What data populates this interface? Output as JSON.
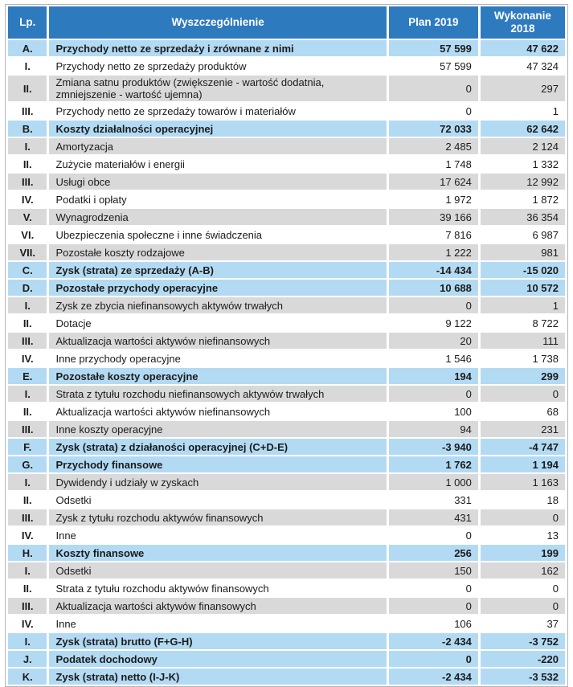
{
  "colors": {
    "header_bg": "#2e7abf",
    "header_text": "#ffffff",
    "section_row_bg": "#b3daf3",
    "gray_row_bg": "#d9d9d9",
    "body_text": "#1b1b1b"
  },
  "table": {
    "columns": [
      "Lp.",
      "Wyszczególnienie",
      "Plan 2019",
      "Wykonanie 2018"
    ],
    "rows": [
      {
        "lp": "A.",
        "name": "Przychody netto ze sprzedaży i zrównane z nimi",
        "plan": "57 599",
        "wykonanie": "47 622",
        "style": "section"
      },
      {
        "lp": "I.",
        "name": "Przychody netto ze sprzedaży produktów",
        "plan": "57 599",
        "wykonanie": "47 324",
        "style": "white"
      },
      {
        "lp": "II.",
        "name": "Zmiana satnu produktów (zwiększenie - wartość dodatnia, zmniejszenie - wartość ujemna)",
        "plan": "0",
        "wykonanie": "297",
        "style": "gray"
      },
      {
        "lp": "III.",
        "name": "Przychody netto ze sprzedaży towarów i materiałów",
        "plan": "0",
        "wykonanie": "1",
        "style": "white"
      },
      {
        "lp": "B.",
        "name": "Koszty działalności operacyjnej",
        "plan": "72 033",
        "wykonanie": "62 642",
        "style": "section"
      },
      {
        "lp": "I.",
        "name": "Amortyzacja",
        "plan": "2 485",
        "wykonanie": "2 124",
        "style": "gray"
      },
      {
        "lp": "II.",
        "name": "Zużycie materiałów i energii",
        "plan": "1 748",
        "wykonanie": "1 332",
        "style": "white"
      },
      {
        "lp": "III.",
        "name": "Usługi obce",
        "plan": "17 624",
        "wykonanie": "12 992",
        "style": "gray"
      },
      {
        "lp": "IV.",
        "name": "Podatki i opłaty",
        "plan": "1 972",
        "wykonanie": "1 872",
        "style": "white"
      },
      {
        "lp": "V.",
        "name": "Wynagrodzenia",
        "plan": "39 166",
        "wykonanie": "36 354",
        "style": "gray"
      },
      {
        "lp": "VI.",
        "name": "Ubezpieczenia społeczne i inne świadczenia",
        "plan": "7 816",
        "wykonanie": "6 987",
        "style": "white"
      },
      {
        "lp": "VII.",
        "name": "Pozostałe koszty rodzajowe",
        "plan": "1 222",
        "wykonanie": "981",
        "style": "gray"
      },
      {
        "lp": "C.",
        "name": "Zysk (strata) ze sprzedaży (A-B)",
        "plan": "-14 434",
        "wykonanie": "-15 020",
        "style": "section"
      },
      {
        "lp": "D.",
        "name": "Pozostałe przychody operacyjne",
        "plan": "10 688",
        "wykonanie": "10 572",
        "style": "section"
      },
      {
        "lp": "I.",
        "name": "Zysk ze zbycia niefinansowych aktywów trwałych",
        "plan": "0",
        "wykonanie": "1",
        "style": "gray"
      },
      {
        "lp": "II.",
        "name": "Dotacje",
        "plan": "9 122",
        "wykonanie": "8 722",
        "style": "white"
      },
      {
        "lp": "III.",
        "name": "Aktualizacja wartości aktywów niefinansowych",
        "plan": "20",
        "wykonanie": "111",
        "style": "gray"
      },
      {
        "lp": "IV.",
        "name": "Inne przychody operacyjne",
        "plan": "1 546",
        "wykonanie": "1 738",
        "style": "white"
      },
      {
        "lp": "E.",
        "name": "Pozostałe koszty operacyjne",
        "plan": "194",
        "wykonanie": "299",
        "style": "section"
      },
      {
        "lp": "I.",
        "name": "Strata z tytułu rozchodu niefinansowych aktywów trwałych",
        "plan": "0",
        "wykonanie": "0",
        "style": "gray"
      },
      {
        "lp": "II.",
        "name": "Aktualizacja wartości aktywów niefinansowych",
        "plan": "100",
        "wykonanie": "68",
        "style": "white"
      },
      {
        "lp": "III.",
        "name": "Inne koszty operacyjne",
        "plan": "94",
        "wykonanie": "231",
        "style": "gray"
      },
      {
        "lp": "F.",
        "name": "Zysk (strata) z działaności operacyjnej (C+D-E)",
        "plan": "-3 940",
        "wykonanie": "-4 747",
        "style": "section"
      },
      {
        "lp": "G.",
        "name": "Przychody finansowe",
        "plan": "1 762",
        "wykonanie": "1 194",
        "style": "section"
      },
      {
        "lp": "I.",
        "name": "Dywidendy i udziały w zyskach",
        "plan": "1 000",
        "wykonanie": "1 163",
        "style": "gray"
      },
      {
        "lp": "II.",
        "name": "Odsetki",
        "plan": "331",
        "wykonanie": "18",
        "style": "white"
      },
      {
        "lp": "III.",
        "name": "Zysk z tytułu rozchodu aktywów finansowych",
        "plan": "431",
        "wykonanie": "0",
        "style": "gray"
      },
      {
        "lp": "IV.",
        "name": "Inne",
        "plan": "0",
        "wykonanie": "13",
        "style": "white"
      },
      {
        "lp": "H.",
        "name": "Koszty finansowe",
        "plan": "256",
        "wykonanie": "199",
        "style": "section"
      },
      {
        "lp": "I.",
        "name": "Odsetki",
        "plan": "150",
        "wykonanie": "162",
        "style": "gray"
      },
      {
        "lp": "II.",
        "name": "Strata z tytułu rozchodu aktywów finansowych",
        "plan": "0",
        "wykonanie": "0",
        "style": "white"
      },
      {
        "lp": "III.",
        "name": "Aktualizacja wartości aktywów finansowych",
        "plan": "0",
        "wykonanie": "0",
        "style": "gray"
      },
      {
        "lp": "IV.",
        "name": "Inne",
        "plan": "106",
        "wykonanie": "37",
        "style": "white"
      },
      {
        "lp": "I.",
        "name": "Zysk (strata) brutto (F+G-H)",
        "plan": "-2 434",
        "wykonanie": "-3 752",
        "style": "section"
      },
      {
        "lp": "J.",
        "name": "Podatek dochodowy",
        "plan": "0",
        "wykonanie": "-220",
        "style": "section"
      },
      {
        "lp": "K.",
        "name": "Zysk (strata) netto (I-J-K)",
        "plan": "-2 434",
        "wykonanie": "-3 532",
        "style": "section"
      }
    ]
  }
}
